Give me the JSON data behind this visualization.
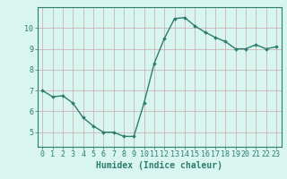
{
  "x": [
    0,
    1,
    2,
    3,
    4,
    5,
    6,
    7,
    8,
    9,
    10,
    11,
    12,
    13,
    14,
    15,
    16,
    17,
    18,
    19,
    20,
    21,
    22,
    23
  ],
  "y": [
    7.0,
    6.7,
    6.75,
    6.4,
    5.7,
    5.3,
    5.0,
    5.0,
    4.8,
    4.8,
    6.4,
    8.3,
    9.5,
    10.45,
    10.5,
    10.1,
    9.8,
    9.55,
    9.35,
    9.0,
    9.0,
    9.2,
    9.0,
    9.1
  ],
  "line_color": "#2d7d6e",
  "marker": "D",
  "marker_size": 1.8,
  "line_width": 1.0,
  "bg_color": "#d9f5f0",
  "grid_color": "#c8a8a8",
  "axis_color": "#2d7d6e",
  "xlabel": "Humidex (Indice chaleur)",
  "xlabel_fontsize": 7,
  "tick_fontsize": 6,
  "xlim": [
    -0.5,
    23.5
  ],
  "ylim": [
    4.3,
    11.0
  ],
  "yticks": [
    5,
    6,
    7,
    8,
    9,
    10
  ],
  "xticks": [
    0,
    1,
    2,
    3,
    4,
    5,
    6,
    7,
    8,
    9,
    10,
    11,
    12,
    13,
    14,
    15,
    16,
    17,
    18,
    19,
    20,
    21,
    22,
    23
  ]
}
